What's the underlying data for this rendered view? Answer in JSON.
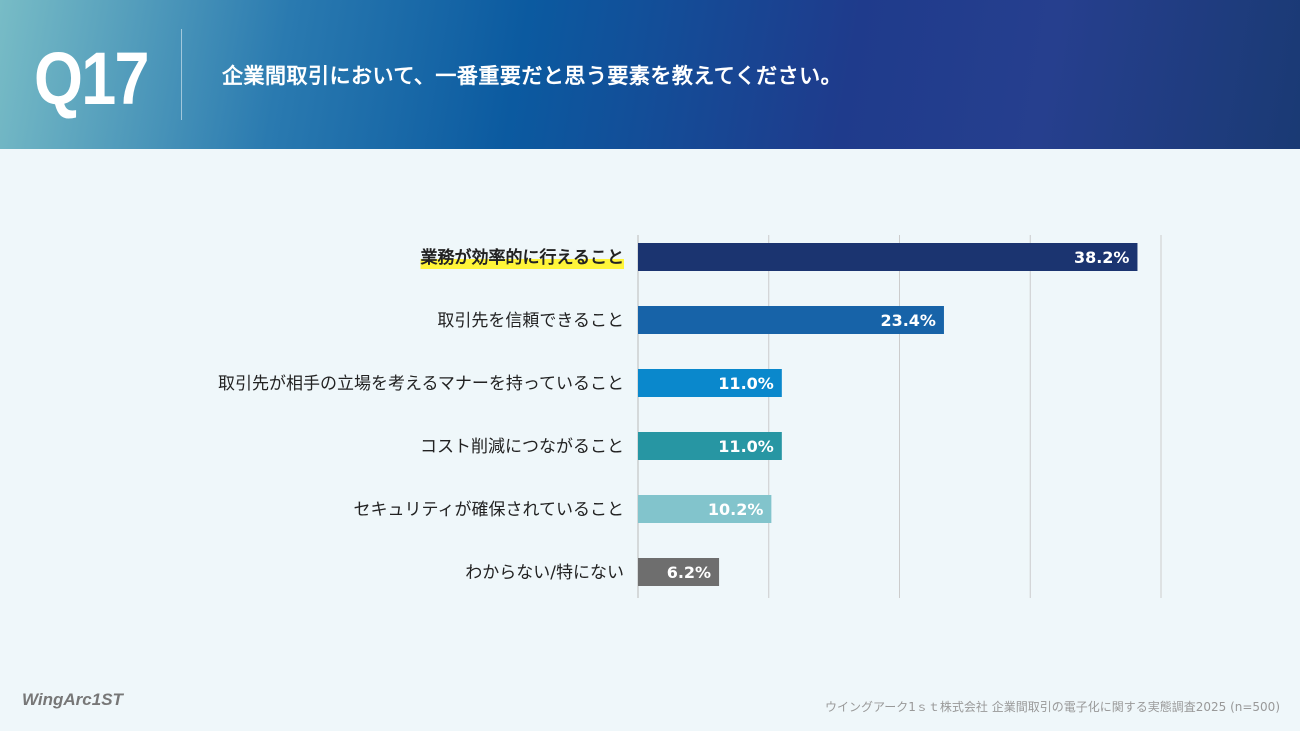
{
  "header": {
    "question_number": "Q17",
    "question": "企業間取引において、一番重要だと思う要素を教えてください。"
  },
  "footer": {
    "logo": "WingArc1ST",
    "source": "ウイングアーク1ｓｔ株式会社 企業間取引の電子化に関する実態調査2025 (n=500)"
  },
  "chart_data": {
    "type": "bar",
    "orientation": "horizontal",
    "categories": [
      "業務が効率的に行えること",
      "取引先を信頼できること",
      "取引先が相手の立場を考えるマナーを持っていること",
      "コスト削減につながること",
      "セキュリティが確保されていること",
      "わからない/特にない"
    ],
    "values": [
      38.2,
      23.4,
      11.0,
      11.0,
      10.2,
      6.2
    ],
    "value_labels": [
      "38.2%",
      "23.4%",
      "11.0%",
      "11.0%",
      "10.2%",
      "6.2%"
    ],
    "colors": [
      "#1b3470",
      "#1763a8",
      "#0a88cc",
      "#2796a3",
      "#82c4cc",
      "#6e6e6e"
    ],
    "highlight_index": 0,
    "highlight_color": "#fff53a",
    "xlim": [
      0,
      40
    ],
    "grid_step": 10,
    "grid": true,
    "unit": "%"
  }
}
